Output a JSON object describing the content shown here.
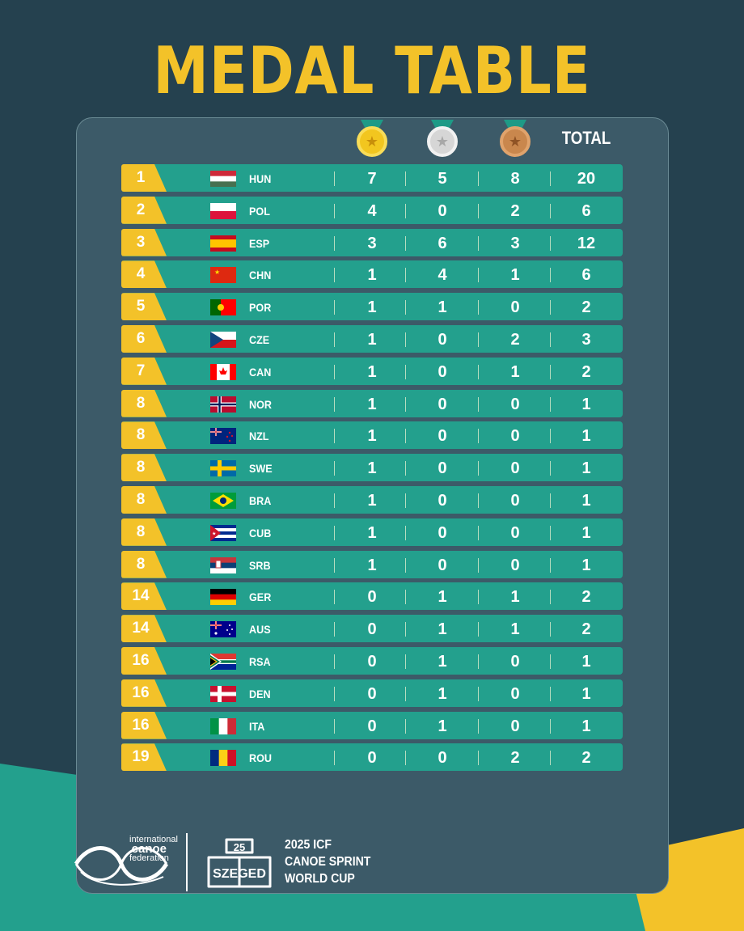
{
  "title": "MEDAL TABLE",
  "headers": {
    "gold": "gold-medal",
    "silver": "silver-medal",
    "bronze": "bronze-medal",
    "total": "TOTAL"
  },
  "colors": {
    "background": "#25414f",
    "panel": "#3c5a68",
    "row": "#23a08d",
    "accent": "#f3c229"
  },
  "rows": [
    {
      "rank": "1",
      "flag": "HUN",
      "code": "HUN",
      "gold": "7",
      "silver": "5",
      "bronze": "8",
      "total": "20"
    },
    {
      "rank": "2",
      "flag": "POL",
      "code": "POL",
      "gold": "4",
      "silver": "0",
      "bronze": "2",
      "total": "6"
    },
    {
      "rank": "3",
      "flag": "ESP",
      "code": "ESP",
      "gold": "3",
      "silver": "6",
      "bronze": "3",
      "total": "12"
    },
    {
      "rank": "4",
      "flag": "CHN",
      "code": "CHN",
      "gold": "1",
      "silver": "4",
      "bronze": "1",
      "total": "6"
    },
    {
      "rank": "5",
      "flag": "POR",
      "code": "POR",
      "gold": "1",
      "silver": "1",
      "bronze": "0",
      "total": "2"
    },
    {
      "rank": "6",
      "flag": "CZE",
      "code": "CZE",
      "gold": "1",
      "silver": "0",
      "bronze": "2",
      "total": "3"
    },
    {
      "rank": "7",
      "flag": "CAN",
      "code": "CAN",
      "gold": "1",
      "silver": "0",
      "bronze": "1",
      "total": "2"
    },
    {
      "rank": "8",
      "flag": "NOR",
      "code": "NOR",
      "gold": "1",
      "silver": "0",
      "bronze": "0",
      "total": "1"
    },
    {
      "rank": "8",
      "flag": "NZL",
      "code": "NZL",
      "gold": "1",
      "silver": "0",
      "bronze": "0",
      "total": "1"
    },
    {
      "rank": "8",
      "flag": "SWE",
      "code": "SWE",
      "gold": "1",
      "silver": "0",
      "bronze": "0",
      "total": "1"
    },
    {
      "rank": "8",
      "flag": "BRA",
      "code": "BRA",
      "gold": "1",
      "silver": "0",
      "bronze": "0",
      "total": "1"
    },
    {
      "rank": "8",
      "flag": "CUB",
      "code": "CUB",
      "gold": "1",
      "silver": "0",
      "bronze": "0",
      "total": "1"
    },
    {
      "rank": "8",
      "flag": "SRB",
      "code": "SRB",
      "gold": "1",
      "silver": "0",
      "bronze": "0",
      "total": "1"
    },
    {
      "rank": "14",
      "flag": "GER",
      "code": "GER",
      "gold": "0",
      "silver": "1",
      "bronze": "1",
      "total": "2"
    },
    {
      "rank": "14",
      "flag": "AUS",
      "code": "AUS",
      "gold": "0",
      "silver": "1",
      "bronze": "1",
      "total": "2"
    },
    {
      "rank": "16",
      "flag": "RSA",
      "code": "RSA",
      "gold": "0",
      "silver": "1",
      "bronze": "0",
      "total": "1"
    },
    {
      "rank": "16",
      "flag": "DEN",
      "code": "DEN",
      "gold": "0",
      "silver": "1",
      "bronze": "0",
      "total": "1"
    },
    {
      "rank": "16",
      "flag": "ITA",
      "code": "ITA",
      "gold": "0",
      "silver": "1",
      "bronze": "0",
      "total": "1"
    },
    {
      "rank": "19",
      "flag": "ROU",
      "code": "ROU",
      "gold": "0",
      "silver": "0",
      "bronze": "2",
      "total": "2"
    }
  ],
  "footer": {
    "icf_line1": "international",
    "icf_line2": "canoe",
    "icf_line3": "federation",
    "szeged_logo": "SZEGED 25",
    "event_line1": "2025 ICF",
    "event_line2": "CANOE SPRINT",
    "event_line3": "WORLD CUP"
  }
}
